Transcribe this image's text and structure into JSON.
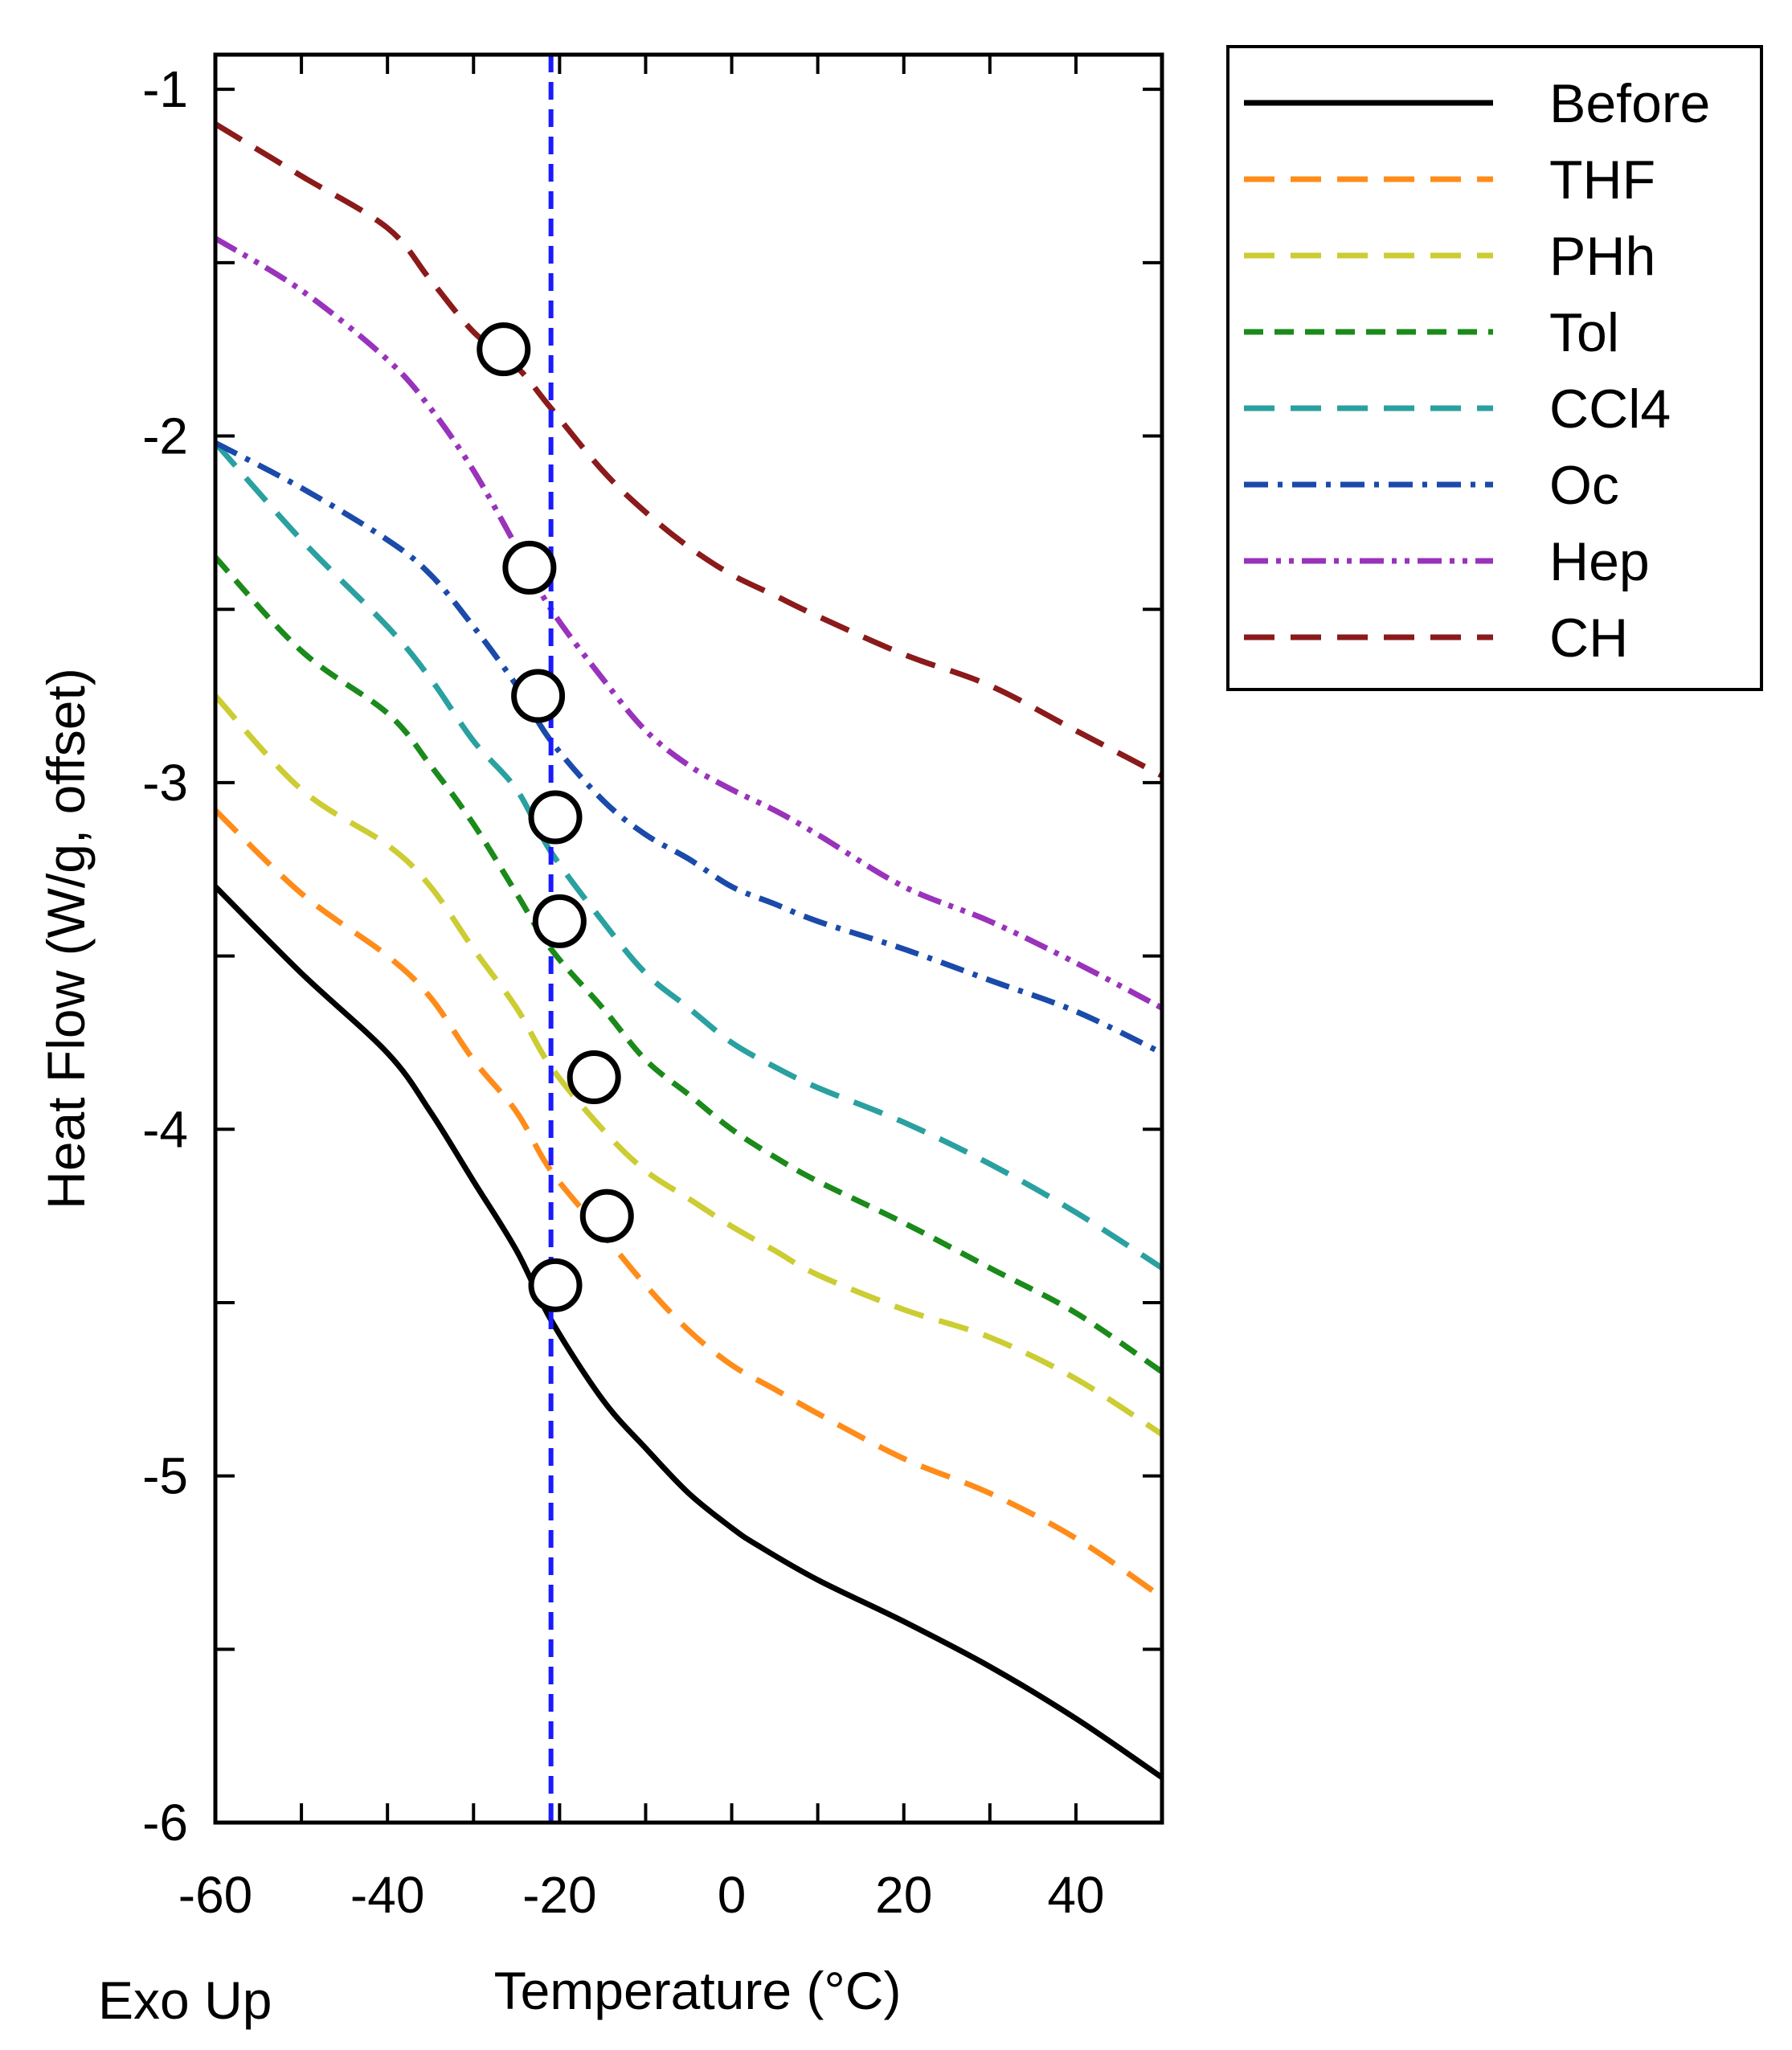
{
  "chart_data": {
    "type": "line",
    "xlabel": "Temperature (°C)",
    "ylabel": "Heat Flow (W/g, offset)",
    "footnote": "Exo Up",
    "xlim": [
      -60,
      50
    ],
    "ylim": [
      -6,
      -0.9
    ],
    "xticks": [
      -60,
      -40,
      -20,
      0,
      20,
      40
    ],
    "yticks": [
      -1,
      -2,
      -3,
      -4,
      -5,
      -6
    ],
    "vline": {
      "x": -21,
      "color": "#1a1aff"
    },
    "legend_position": "outside-right-top",
    "series": [
      {
        "name": "Before",
        "color": "#000000",
        "dash": "solid",
        "x": [
          -60,
          -50,
          -40,
          -35,
          -30,
          -25,
          -21,
          -15,
          -10,
          -5,
          0,
          3,
          10,
          20,
          30,
          40,
          50
        ],
        "y": [
          -3.3,
          -3.55,
          -3.78,
          -3.95,
          -4.15,
          -4.35,
          -4.55,
          -4.78,
          -4.92,
          -5.05,
          -5.15,
          -5.2,
          -5.3,
          -5.42,
          -5.55,
          -5.7,
          -5.87
        ]
      },
      {
        "name": "THF",
        "color": "#ff8c1a",
        "dash": "long",
        "x": [
          -60,
          -50,
          -40,
          -35,
          -30,
          -25,
          -21,
          -15,
          -10,
          -5,
          0,
          5,
          10,
          20,
          30,
          40,
          50
        ],
        "y": [
          -3.08,
          -3.32,
          -3.5,
          -3.62,
          -3.8,
          -3.95,
          -4.12,
          -4.3,
          -4.45,
          -4.58,
          -4.68,
          -4.75,
          -4.82,
          -4.95,
          -5.05,
          -5.18,
          -5.35
        ]
      },
      {
        "name": "PHh",
        "color": "#cccc33",
        "dash": "long",
        "x": [
          -60,
          -50,
          -40,
          -35,
          -30,
          -25,
          -21,
          -15,
          -10,
          -5,
          0,
          5,
          10,
          20,
          30,
          40,
          50
        ],
        "y": [
          -2.75,
          -3.02,
          -3.18,
          -3.3,
          -3.48,
          -3.65,
          -3.82,
          -4.0,
          -4.12,
          -4.2,
          -4.28,
          -4.35,
          -4.42,
          -4.52,
          -4.6,
          -4.72,
          -4.88
        ]
      },
      {
        "name": "Tol",
        "color": "#1a8a1a",
        "dash": "medium",
        "x": [
          -60,
          -50,
          -40,
          -35,
          -30,
          -25,
          -21,
          -15,
          -10,
          -5,
          0,
          5,
          10,
          20,
          30,
          40,
          50
        ],
        "y": [
          -2.35,
          -2.62,
          -2.8,
          -2.95,
          -3.12,
          -3.32,
          -3.48,
          -3.65,
          -3.8,
          -3.9,
          -4.0,
          -4.08,
          -4.15,
          -4.27,
          -4.4,
          -4.53,
          -4.7
        ]
      },
      {
        "name": "CCl4",
        "color": "#2aa0a0",
        "dash": "long",
        "x": [
          -60,
          -50,
          -40,
          -35,
          -30,
          -25,
          -21,
          -15,
          -10,
          -5,
          0,
          5,
          10,
          20,
          30,
          40,
          50
        ],
        "y": [
          -2.02,
          -2.3,
          -2.55,
          -2.7,
          -2.88,
          -3.02,
          -3.2,
          -3.4,
          -3.55,
          -3.65,
          -3.75,
          -3.82,
          -3.88,
          -3.98,
          -4.1,
          -4.24,
          -4.4
        ]
      },
      {
        "name": "Oc",
        "color": "#1a4aaa",
        "dash": "dashdot",
        "x": [
          -60,
          -50,
          -40,
          -35,
          -30,
          -25,
          -21,
          -15,
          -10,
          -5,
          0,
          5,
          10,
          20,
          30,
          40,
          50
        ],
        "y": [
          -2.02,
          -2.15,
          -2.3,
          -2.4,
          -2.55,
          -2.72,
          -2.88,
          -3.05,
          -3.15,
          -3.22,
          -3.3,
          -3.35,
          -3.4,
          -3.48,
          -3.57,
          -3.66,
          -3.78
        ]
      },
      {
        "name": "Hep",
        "color": "#9933bb",
        "dash": "dashdotdot",
        "x": [
          -60,
          -50,
          -40,
          -35,
          -30,
          -25,
          -21,
          -15,
          -10,
          -5,
          0,
          5,
          10,
          20,
          30,
          40,
          50
        ],
        "y": [
          -1.43,
          -1.58,
          -1.78,
          -1.92,
          -2.1,
          -2.32,
          -2.5,
          -2.7,
          -2.85,
          -2.95,
          -3.02,
          -3.08,
          -3.15,
          -3.3,
          -3.4,
          -3.52,
          -3.65
        ]
      },
      {
        "name": "CH",
        "color": "#8b1a1a",
        "dash": "long",
        "x": [
          -60,
          -50,
          -40,
          -35,
          -30,
          -25,
          -21,
          -15,
          -10,
          -5,
          0,
          5,
          10,
          20,
          30,
          40,
          50
        ],
        "y": [
          -1.1,
          -1.25,
          -1.4,
          -1.55,
          -1.7,
          -1.8,
          -1.92,
          -2.1,
          -2.22,
          -2.32,
          -2.4,
          -2.46,
          -2.52,
          -2.63,
          -2.72,
          -2.85,
          -2.98
        ]
      }
    ],
    "annotations": [
      {
        "type": "circle",
        "x": -26.5,
        "y": -1.75
      },
      {
        "type": "circle",
        "x": -23.5,
        "y": -2.38
      },
      {
        "type": "circle",
        "x": -22.5,
        "y": -2.75
      },
      {
        "type": "circle",
        "x": -20.5,
        "y": -3.1
      },
      {
        "type": "circle",
        "x": -20.0,
        "y": -3.4
      },
      {
        "type": "circle",
        "x": -16.0,
        "y": -3.85
      },
      {
        "type": "circle",
        "x": -14.5,
        "y": -4.25
      },
      {
        "type": "circle",
        "x": -20.5,
        "y": -4.45
      }
    ]
  }
}
